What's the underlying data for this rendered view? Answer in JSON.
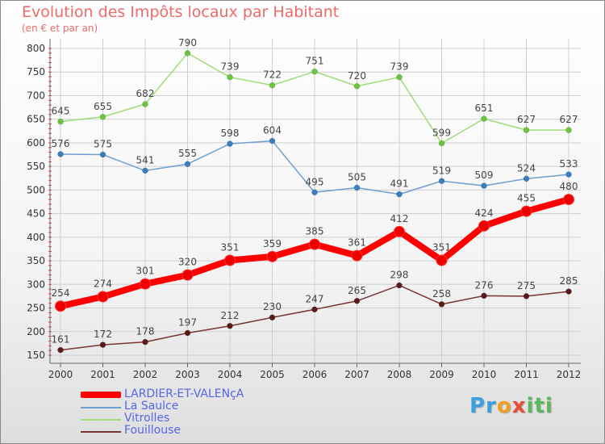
{
  "header": {
    "title": "Evolution des Impôts locaux par Habitant",
    "subtitle": "(en € et par an)"
  },
  "chart_data": {
    "type": "line",
    "title": "Evolution des Impôts locaux par Habitant",
    "subtitle": "(en € et par an)",
    "xlabel": "",
    "ylabel": "",
    "x": [
      "2000",
      "2001",
      "2002",
      "2003",
      "2004",
      "2005",
      "2006",
      "2007",
      "2008",
      "2009",
      "2010",
      "2011",
      "2012"
    ],
    "ylim": [
      150,
      800
    ],
    "yticks": [
      150,
      200,
      250,
      300,
      350,
      400,
      450,
      500,
      550,
      600,
      650,
      700,
      750,
      800
    ],
    "grid": true,
    "legend_position": "bottom-left",
    "series": [
      {
        "name": "LARDIER-ET-VALENçA",
        "color": "#ff0000",
        "marker_color": "#ee0000",
        "emphasis": true,
        "values": [
          254,
          274,
          301,
          320,
          351,
          359,
          385,
          361,
          412,
          351,
          424,
          455,
          480
        ]
      },
      {
        "name": "La Saulce",
        "color": "#6f9fcf",
        "marker_color": "#3a7ec0",
        "emphasis": false,
        "values": [
          576,
          575,
          541,
          555,
          598,
          604,
          495,
          505,
          491,
          519,
          509,
          524,
          533
        ]
      },
      {
        "name": "Vitrolles",
        "color": "#9fdc7a",
        "marker_color": "#6cc43f",
        "emphasis": false,
        "values": [
          645,
          655,
          682,
          790,
          739,
          722,
          751,
          720,
          739,
          599,
          651,
          627,
          627
        ]
      },
      {
        "name": "Fouillouse",
        "color": "#7a3535",
        "marker_color": "#5a1a1a",
        "emphasis": false,
        "values": [
          161,
          172,
          178,
          197,
          212,
          230,
          247,
          265,
          298,
          258,
          276,
          275,
          285
        ]
      }
    ]
  },
  "legend": {
    "items": [
      "LARDIER-ET-VALENçA",
      "La Saulce",
      "Vitrolles",
      "Fouillouse"
    ]
  },
  "logo": {
    "parts": [
      "Pr",
      "o",
      "x",
      "iti"
    ]
  }
}
